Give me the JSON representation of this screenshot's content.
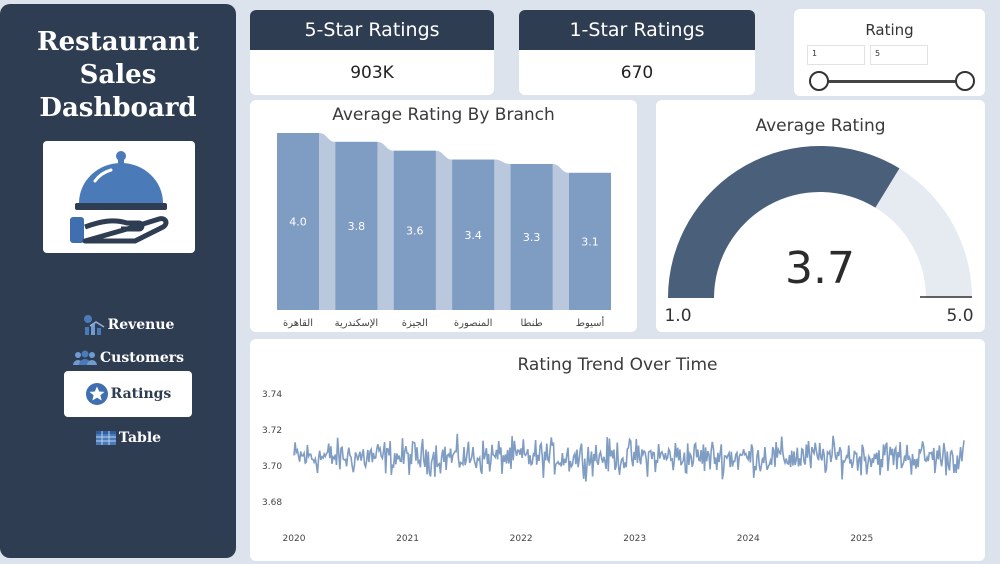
{
  "sidebar": {
    "title_lines": [
      "Restaurant",
      "Sales",
      "Dashboard"
    ],
    "nav": [
      {
        "label": "Revenue",
        "icon": "revenue-icon",
        "active": false
      },
      {
        "label": "Customers",
        "icon": "customers-icon",
        "active": false
      },
      {
        "label": "Ratings",
        "icon": "star-icon",
        "active": true
      },
      {
        "label": "Table",
        "icon": "table-icon",
        "active": false
      }
    ]
  },
  "kpis": [
    {
      "title": "5-Star Ratings",
      "value": "903K"
    },
    {
      "title": "1-Star Ratings",
      "value": "670"
    }
  ],
  "slicer": {
    "title": "Rating",
    "min_value": "1",
    "max_value": "5",
    "min": 1,
    "max": 5
  },
  "colors": {
    "sidebar": "#2e3d52",
    "bar": "#7f9cc2",
    "bar_back": "#b9c8dc",
    "gauge_fill": "#4a5f7a",
    "gauge_track": "#e6ebf2",
    "line": "#7f9cc2"
  },
  "chart_data": [
    {
      "type": "bar",
      "title": "Average Rating By Branch",
      "categories": [
        "القاهرة",
        "الإسكندرية",
        "الجيزة",
        "المنصورة",
        "طنطا",
        "أسيوط"
      ],
      "values": [
        4.0,
        3.8,
        3.6,
        3.4,
        3.3,
        3.1
      ],
      "data_labels": [
        "4.0",
        "3.8",
        "3.6",
        "3.4",
        "3.3",
        "3.1"
      ],
      "ylim": [
        0,
        4.0
      ]
    },
    {
      "type": "gauge",
      "title": "Average Rating",
      "value": 3.7,
      "value_label": "3.7",
      "min": 1.0,
      "max": 5.0,
      "min_label": "1.0",
      "max_label": "5.0"
    },
    {
      "type": "line",
      "title": "Rating Trend Over Time",
      "x_ticks": [
        "2020",
        "2021",
        "2022",
        "2023",
        "2024",
        "2025"
      ],
      "y_ticks": [
        "3.74",
        "3.72",
        "3.70",
        "3.68"
      ],
      "ylim": [
        3.675,
        3.745
      ],
      "x_range": [
        2020.0,
        2025.9
      ],
      "points": 600,
      "mean": 3.705,
      "spread": 0.009
    }
  ]
}
